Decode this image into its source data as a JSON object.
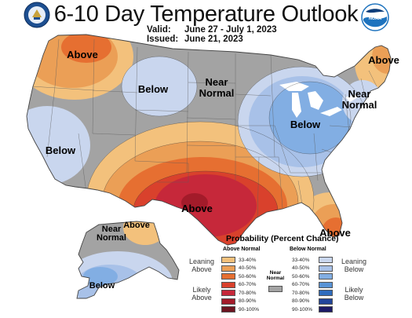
{
  "header": {
    "title": "6-10 Day Temperature Outlook",
    "valid_label": "Valid:",
    "valid_value": "June 27 - July 1, 2023",
    "issued_label": "Issued:",
    "issued_value": "June 21, 2023"
  },
  "logos": {
    "left": "doc-seal-icon",
    "right": "noaa-logo-icon"
  },
  "regions": {
    "above_northwest": "Above",
    "below_north_rockies": "Below",
    "near_normal_north_plains": "Near\nNormal",
    "below_pacific": "Below",
    "above_texas": "Above",
    "below_great_lakes": "Below",
    "above_new_england": "Above",
    "near_normal_northeast": "Near\nNormal",
    "above_florida": "Above",
    "near_normal_alaska": "Near\nNormal",
    "above_alaska": "Above",
    "below_alaska": "Below"
  },
  "legend": {
    "title": "Probability (Percent Chance)",
    "above_header": "Above Normal",
    "below_header": "Below Normal",
    "near_normal_label": "Near\nNormal",
    "leaning_above": "Leaning\nAbove",
    "likely_above": "Likely\nAbove",
    "leaning_below": "Leaning\nBelow",
    "likely_below": "Likely\nBelow",
    "ranges": [
      "33-40%",
      "40-50%",
      "50-60%",
      "60-70%",
      "70-80%",
      "80-90%",
      "90-100%"
    ],
    "above_colors": [
      "#f3c17c",
      "#eb9f56",
      "#e66f31",
      "#d9412c",
      "#c6283a",
      "#a31b2a",
      "#6d1420"
    ],
    "below_colors": [
      "#c9d6ee",
      "#a8c1e8",
      "#82aee3",
      "#5893d6",
      "#2f6cbd",
      "#22459a",
      "#1d1a66"
    ],
    "near_normal_color": "#a3a3a3"
  }
}
